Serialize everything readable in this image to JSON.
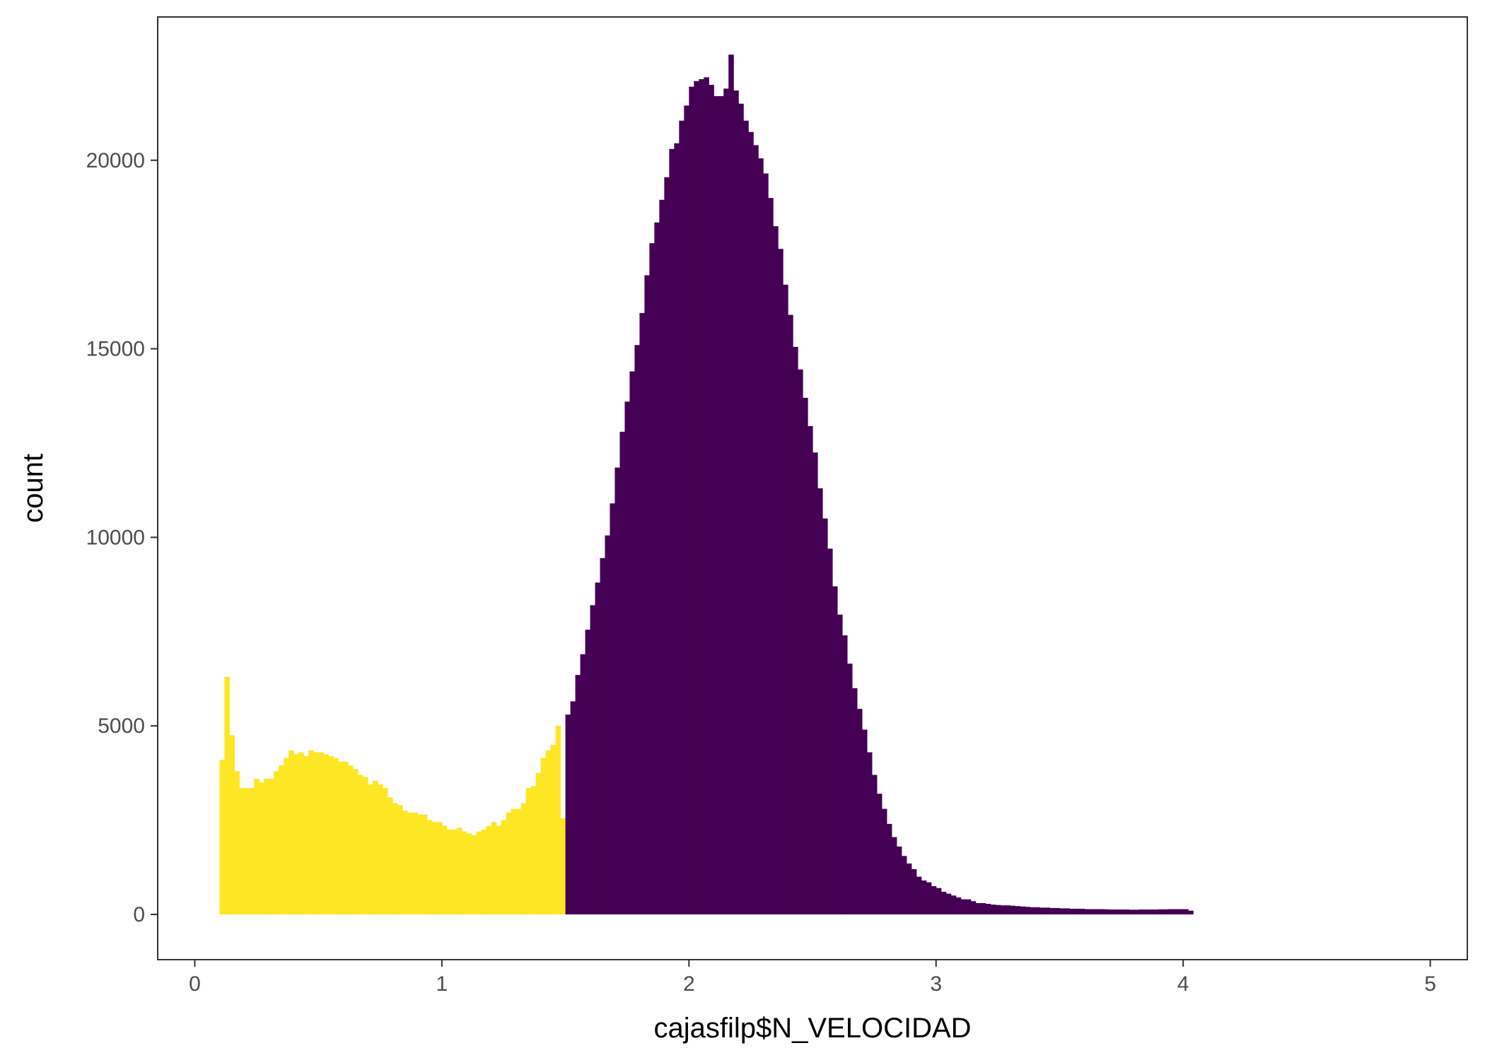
{
  "chart_data": {
    "type": "bar",
    "title": "",
    "xlabel": "cajasfilp$N_VELOCIDAD",
    "ylabel": "count",
    "xlim": [
      -0.15,
      5.15
    ],
    "ylim": [
      -1200,
      23800
    ],
    "grid": false,
    "x_ticks": [
      0,
      1,
      2,
      3,
      4,
      5
    ],
    "y_ticks": [
      0,
      5000,
      10000,
      15000,
      20000
    ],
    "x_tick_labels": [
      "0",
      "1",
      "2",
      "3",
      "4",
      "5"
    ],
    "y_tick_labels": [
      "0",
      "5000",
      "10000",
      "15000",
      "20000"
    ],
    "bin_width": 0.02,
    "colors": {
      "low": "#fde725",
      "high": "#440154",
      "panel_border": "#333333",
      "tick_text": "#4d4d4d"
    },
    "series": [
      {
        "color": "#fde725",
        "x_start": 0.1,
        "values": [
          4100,
          6300,
          4750,
          3800,
          3350,
          3350,
          3350,
          3600,
          3500,
          3600,
          3600,
          3800,
          3950,
          4150,
          4350,
          4250,
          4300,
          4200,
          4350,
          4300,
          4300,
          4250,
          4200,
          4150,
          4050,
          4050,
          3950,
          3850,
          3700,
          3650,
          3450,
          3550,
          3450,
          3350,
          3100,
          2950,
          2900,
          2750,
          2700,
          2700,
          2650,
          2650,
          2500,
          2450,
          2450,
          2350,
          2250,
          2250,
          2300,
          2200,
          2150,
          2100,
          2200,
          2250,
          2350,
          2450,
          2350,
          2500,
          2700,
          2800,
          2800,
          2950,
          3350,
          3400,
          3750,
          4150,
          4350,
          4500,
          5000,
          2550
        ]
      },
      {
        "color": "#440154",
        "x_start": 1.5,
        "values": [
          5300,
          5650,
          6350,
          6900,
          7550,
          8200,
          8800,
          9450,
          10050,
          10900,
          11850,
          12800,
          13600,
          14400,
          15100,
          15950,
          16950,
          17800,
          18350,
          18950,
          19550,
          20300,
          20450,
          21050,
          21450,
          21950,
          22100,
          22150,
          22200,
          22000,
          21700,
          21700,
          21900,
          22800,
          21850,
          21500,
          21050,
          20750,
          20400,
          20050,
          19650,
          19000,
          18250,
          17650,
          16700,
          15900,
          15050,
          14450,
          13700,
          12950,
          12250,
          11300,
          10500,
          9700,
          8700,
          7950,
          7400,
          6650,
          6000,
          5450,
          4900,
          4300,
          3700,
          3200,
          2800,
          2400,
          2050,
          1800,
          1550,
          1350,
          1200,
          1000,
          900,
          850,
          750,
          700,
          600,
          550,
          500,
          450,
          400,
          400,
          350,
          300,
          300,
          280,
          260,
          250,
          240,
          240,
          230,
          220,
          210,
          200,
          190,
          190,
          180,
          180,
          170,
          170,
          160,
          160,
          150,
          150,
          150,
          140,
          140,
          140,
          140,
          135,
          130,
          130,
          130,
          130,
          125,
          125,
          130,
          130,
          130,
          130,
          135,
          135,
          140,
          140,
          140,
          140,
          100
        ]
      }
    ]
  }
}
